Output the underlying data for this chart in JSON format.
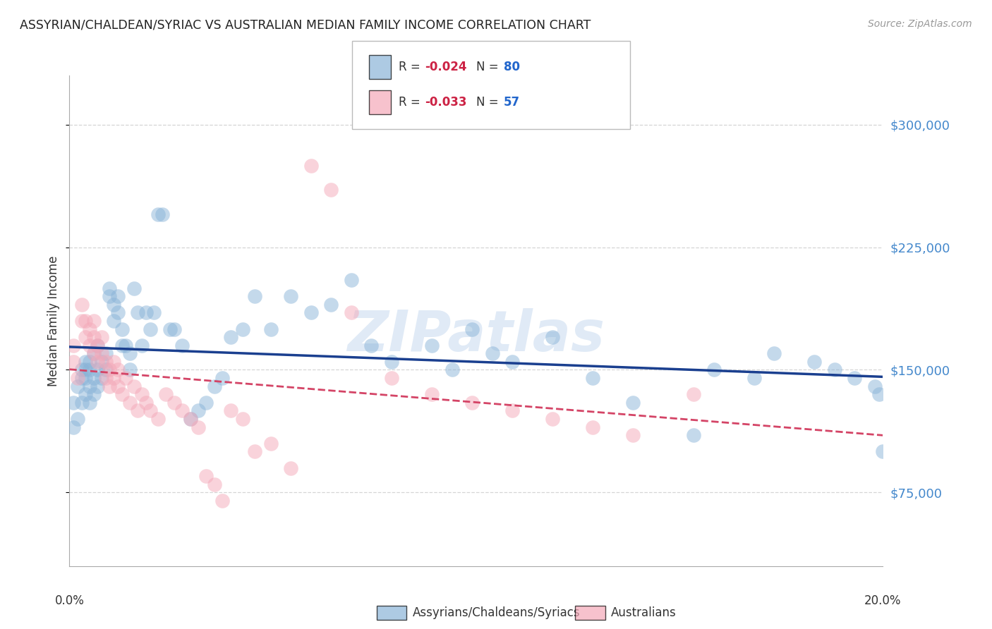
{
  "title": "ASSYRIAN/CHALDEAN/SYRIAC VS AUSTRALIAN MEDIAN FAMILY INCOME CORRELATION CHART",
  "source": "Source: ZipAtlas.com",
  "ylabel": "Median Family Income",
  "yticks": [
    75000,
    150000,
    225000,
    300000
  ],
  "ytick_labels": [
    "$75,000",
    "$150,000",
    "$225,000",
    "$300,000"
  ],
  "ylim": [
    30000,
    330000
  ],
  "xlim": [
    0.0,
    0.202
  ],
  "blue_color": "#8ab4d8",
  "pink_color": "#f4a8b8",
  "blue_line_color": "#1a3f8f",
  "pink_line_color": "#d44466",
  "watermark_color": "#ccddf0",
  "watermark_text": "ZIPatlas",
  "blue_R": -0.024,
  "blue_N": 80,
  "pink_R": -0.033,
  "pink_N": 57,
  "blue_scatter_x": [
    0.001,
    0.001,
    0.002,
    0.002,
    0.003,
    0.003,
    0.003,
    0.004,
    0.004,
    0.004,
    0.004,
    0.005,
    0.005,
    0.005,
    0.005,
    0.006,
    0.006,
    0.006,
    0.007,
    0.007,
    0.007,
    0.008,
    0.008,
    0.009,
    0.009,
    0.01,
    0.01,
    0.011,
    0.011,
    0.012,
    0.012,
    0.013,
    0.013,
    0.014,
    0.015,
    0.015,
    0.016,
    0.017,
    0.018,
    0.019,
    0.02,
    0.021,
    0.022,
    0.023,
    0.025,
    0.026,
    0.028,
    0.03,
    0.032,
    0.034,
    0.036,
    0.038,
    0.04,
    0.043,
    0.046,
    0.05,
    0.055,
    0.06,
    0.065,
    0.07,
    0.075,
    0.08,
    0.09,
    0.095,
    0.1,
    0.105,
    0.11,
    0.12,
    0.13,
    0.14,
    0.155,
    0.16,
    0.17,
    0.175,
    0.185,
    0.19,
    0.195,
    0.2,
    0.201,
    0.202
  ],
  "blue_scatter_y": [
    130000,
    115000,
    120000,
    140000,
    130000,
    145000,
    150000,
    135000,
    145000,
    150000,
    155000,
    130000,
    140000,
    150000,
    155000,
    135000,
    145000,
    160000,
    140000,
    150000,
    165000,
    145000,
    155000,
    150000,
    160000,
    195000,
    200000,
    180000,
    190000,
    185000,
    195000,
    165000,
    175000,
    165000,
    150000,
    160000,
    200000,
    185000,
    165000,
    185000,
    175000,
    185000,
    245000,
    245000,
    175000,
    175000,
    165000,
    120000,
    125000,
    130000,
    140000,
    145000,
    170000,
    175000,
    195000,
    175000,
    195000,
    185000,
    190000,
    205000,
    165000,
    155000,
    165000,
    150000,
    175000,
    160000,
    155000,
    170000,
    145000,
    130000,
    110000,
    150000,
    145000,
    160000,
    155000,
    150000,
    145000,
    140000,
    135000,
    100000
  ],
  "pink_scatter_x": [
    0.001,
    0.001,
    0.002,
    0.003,
    0.003,
    0.004,
    0.004,
    0.005,
    0.005,
    0.006,
    0.006,
    0.006,
    0.007,
    0.007,
    0.008,
    0.008,
    0.009,
    0.009,
    0.01,
    0.01,
    0.011,
    0.011,
    0.012,
    0.012,
    0.013,
    0.014,
    0.015,
    0.016,
    0.017,
    0.018,
    0.019,
    0.02,
    0.022,
    0.024,
    0.026,
    0.028,
    0.03,
    0.032,
    0.034,
    0.036,
    0.038,
    0.04,
    0.043,
    0.046,
    0.05,
    0.055,
    0.06,
    0.065,
    0.07,
    0.08,
    0.09,
    0.1,
    0.11,
    0.12,
    0.13,
    0.14,
    0.155
  ],
  "pink_scatter_y": [
    155000,
    165000,
    145000,
    180000,
    190000,
    170000,
    180000,
    165000,
    175000,
    160000,
    170000,
    180000,
    155000,
    165000,
    160000,
    170000,
    145000,
    155000,
    140000,
    150000,
    145000,
    155000,
    140000,
    150000,
    135000,
    145000,
    130000,
    140000,
    125000,
    135000,
    130000,
    125000,
    120000,
    135000,
    130000,
    125000,
    120000,
    115000,
    85000,
    80000,
    70000,
    125000,
    120000,
    100000,
    105000,
    90000,
    275000,
    260000,
    185000,
    145000,
    135000,
    130000,
    125000,
    120000,
    115000,
    110000,
    135000
  ]
}
